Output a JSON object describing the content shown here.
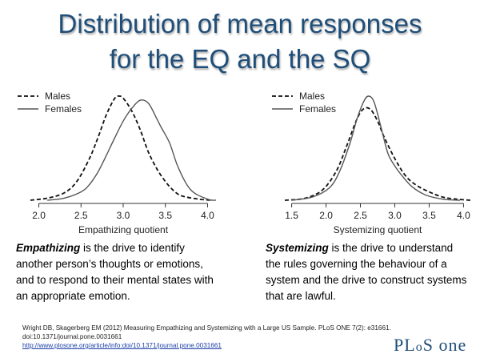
{
  "title_line1": "Distribution of mean responses",
  "title_line2": "for the EQ and the SQ",
  "chart_data": [
    {
      "type": "line",
      "xlabel": "Empathizing quotient",
      "ylabel": "",
      "xlim": [
        1.9,
        4.1
      ],
      "xticks": [
        "2.0",
        "2.5",
        "3.0",
        "3.5",
        "4.0"
      ],
      "xtick_values": [
        2.0,
        2.5,
        3.0,
        3.5,
        4.0
      ],
      "grid": false,
      "legend_position": "top-left",
      "series": [
        {
          "name": "Males",
          "style": "dashed",
          "x": [
            1.9,
            2.1,
            2.3,
            2.45,
            2.6,
            2.7,
            2.8,
            2.9,
            2.95,
            3.0,
            3.1,
            3.2,
            3.3,
            3.4,
            3.5,
            3.6,
            3.7,
            3.9,
            4.05
          ],
          "y": [
            0.0,
            0.02,
            0.07,
            0.18,
            0.4,
            0.6,
            0.82,
            0.98,
            1.0,
            0.98,
            0.86,
            0.68,
            0.46,
            0.3,
            0.18,
            0.09,
            0.04,
            0.01,
            0.0
          ]
        },
        {
          "name": "Females",
          "style": "solid",
          "x": [
            2.1,
            2.3,
            2.5,
            2.6,
            2.7,
            2.8,
            2.9,
            3.0,
            3.1,
            3.2,
            3.3,
            3.4,
            3.45,
            3.55,
            3.65,
            3.8,
            4.0,
            4.1
          ],
          "y": [
            0.0,
            0.02,
            0.08,
            0.15,
            0.27,
            0.43,
            0.6,
            0.76,
            0.88,
            0.96,
            0.93,
            0.78,
            0.7,
            0.55,
            0.32,
            0.1,
            0.01,
            0.0
          ]
        }
      ]
    },
    {
      "type": "line",
      "xlabel": "Systemizing quotient",
      "ylabel": "",
      "xlim": [
        1.4,
        4.1
      ],
      "xticks": [
        "1.5",
        "2.0",
        "2.5",
        "3.0",
        "3.5",
        "4.0"
      ],
      "xtick_values": [
        1.5,
        2.0,
        2.5,
        3.0,
        3.5,
        4.0
      ],
      "grid": false,
      "legend_position": "top-left",
      "series": [
        {
          "name": "Males",
          "style": "dashed",
          "x": [
            1.4,
            1.7,
            1.95,
            2.15,
            2.3,
            2.45,
            2.55,
            2.65,
            2.75,
            2.85,
            3.0,
            3.15,
            3.3,
            3.5,
            3.7,
            3.9,
            4.1
          ],
          "y": [
            0.0,
            0.02,
            0.1,
            0.28,
            0.52,
            0.78,
            0.88,
            0.87,
            0.76,
            0.6,
            0.4,
            0.24,
            0.15,
            0.08,
            0.03,
            0.01,
            0.0
          ]
        },
        {
          "name": "Females",
          "style": "solid",
          "x": [
            1.5,
            1.8,
            2.05,
            2.2,
            2.35,
            2.45,
            2.55,
            2.62,
            2.7,
            2.8,
            2.9,
            3.0,
            3.1,
            3.25,
            3.45,
            3.7,
            3.95
          ],
          "y": [
            0.0,
            0.03,
            0.12,
            0.28,
            0.55,
            0.78,
            0.95,
            1.0,
            0.94,
            0.7,
            0.45,
            0.33,
            0.24,
            0.13,
            0.05,
            0.01,
            0.0
          ]
        }
      ]
    }
  ],
  "descriptions": {
    "eq_term": "Empathizing",
    "eq_text": " is the drive to identify another person’s thoughts or emotions, and to respond to their mental states with an appropriate emotion.",
    "sq_term": "Systemizing",
    "sq_text": " is the drive to understand the rules governing the behaviour of a system and the drive to construct systems that are lawful."
  },
  "citation": {
    "line1": "Wright DB, Skagerberg EM (2012) Measuring Empathizing and Systemizing with a Large US Sample. PLoS ONE 7(2): e31661.",
    "line2": "doi:10.1371/journal.pone.0031661",
    "link": "http://www.plosone.org/article/info:doi/10.1371/journal.pone.0031661"
  },
  "logo": {
    "part1": "PL",
    "part2": "o",
    "part3": "S ",
    "part4": "one"
  },
  "colors": {
    "title": "#1f4e79",
    "curve": "#555555",
    "link": "#1a3fa8"
  }
}
